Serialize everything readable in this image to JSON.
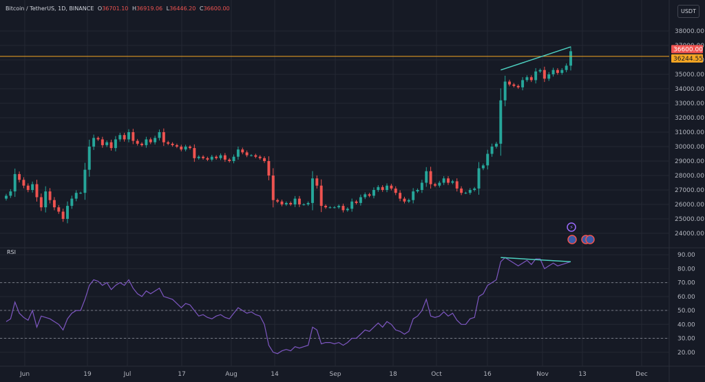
{
  "header": {
    "symbol": "Bitcoin / TetherUS, 1D, BINANCE",
    "o_label": "O",
    "o_value": "36701.10",
    "h_label": "H",
    "h_value": "36919.06",
    "l_label": "L",
    "l_value": "36446.20",
    "c_label": "C",
    "c_value": "36600.00"
  },
  "currency_button": "USDT",
  "rsi_title": "RSI",
  "price_tags": {
    "last_price": "36600.00",
    "line_price": "36244.55"
  },
  "colors": {
    "background": "#161a25",
    "up": "#26a69a",
    "down": "#ef5350",
    "rsi": "#7e57c2",
    "hline": "#f5a623",
    "trend": "#4dd0c0"
  },
  "chart_data": [
    {
      "type": "candlestick",
      "title": "Bitcoin / TetherUS, 1D, BINANCE",
      "x_ticks": [
        "Jun",
        "19",
        "Jul",
        "17",
        "Aug",
        "14",
        "Sep",
        "18",
        "Oct",
        "16",
        "Nov",
        "13",
        "Dec"
      ],
      "y_ticks": [
        "24000.00",
        "25000.00",
        "26000.00",
        "27000.00",
        "28000.00",
        "29000.00",
        "30000.00",
        "31000.00",
        "32000.00",
        "33000.00",
        "34000.00",
        "35000.00",
        "36000.00",
        "37000.00",
        "38000.00"
      ],
      "ylim": [
        23000,
        39000
      ],
      "horizontal_line": 36244.55,
      "closes": [
        26600,
        26900,
        28100,
        27700,
        27300,
        27000,
        27400,
        26500,
        25800,
        26900,
        26300,
        25800,
        25500,
        25000,
        25900,
        26400,
        26800,
        26800,
        28400,
        30000,
        30600,
        30500,
        30100,
        30300,
        29900,
        30500,
        30800,
        30500,
        31000,
        30400,
        30200,
        30100,
        30500,
        30300,
        30600,
        31000,
        30300,
        30200,
        30100,
        30000,
        29800,
        30000,
        29900,
        29200,
        29300,
        29200,
        29100,
        29300,
        29200,
        29400,
        29100,
        29000,
        29300,
        29800,
        29600,
        29400,
        29400,
        29300,
        29200,
        29000,
        28000,
        26300,
        26200,
        26000,
        26100,
        26000,
        26400,
        26000,
        26000,
        26100,
        27800,
        27300,
        25900,
        25800,
        25800,
        25800,
        25900,
        25600,
        25700,
        26200,
        26100,
        26500,
        26700,
        26600,
        27000,
        27200,
        27000,
        27300,
        27100,
        26800,
        26400,
        26200,
        26300,
        26900,
        27000,
        27500,
        28300,
        27400,
        27300,
        27500,
        27800,
        27500,
        27600,
        27100,
        26800,
        26800,
        27000,
        27100,
        28500,
        28700,
        29500,
        30000,
        30200,
        33200,
        34500,
        34300,
        34200,
        34100,
        34600,
        34800,
        34600,
        35200,
        35300,
        34700,
        35000,
        35300,
        35100,
        35300,
        35600,
        36600
      ],
      "lower_pane": {
        "type": "line",
        "title": "RSI",
        "y_ticks": [
          "20.00",
          "30.00",
          "40.00",
          "50.00",
          "60.00",
          "70.00",
          "80.00",
          "90.00"
        ],
        "ylim": [
          10,
          95
        ],
        "dashed_levels": [
          70,
          50,
          30
        ],
        "values": [
          42,
          44,
          56,
          48,
          45,
          43,
          50,
          38,
          46,
          45,
          44,
          42,
          40,
          36,
          44,
          48,
          50,
          50,
          58,
          68,
          72,
          71,
          68,
          70,
          65,
          68,
          70,
          68,
          72,
          66,
          62,
          60,
          64,
          62,
          64,
          66,
          60,
          59,
          58,
          55,
          52,
          55,
          54,
          50,
          46,
          47,
          45,
          44,
          46,
          47,
          45,
          44,
          48,
          52,
          50,
          48,
          49,
          47,
          46,
          40,
          25,
          20,
          19,
          21,
          22,
          21,
          24,
          23,
          24,
          25,
          38,
          36,
          26,
          27,
          27,
          26,
          27,
          25,
          27,
          30,
          30,
          33,
          36,
          35,
          38,
          41,
          38,
          42,
          40,
          36,
          35,
          33,
          35,
          44,
          46,
          50,
          58,
          46,
          45,
          46,
          49,
          46,
          48,
          43,
          40,
          40,
          44,
          45,
          60,
          62,
          68,
          70,
          72,
          85,
          88,
          86,
          84,
          82,
          84,
          86,
          83,
          87,
          87,
          80,
          82,
          84,
          82,
          83,
          84,
          85
        ]
      }
    }
  ]
}
